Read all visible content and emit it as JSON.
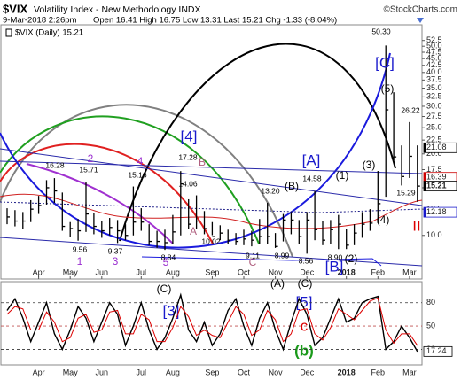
{
  "chart_data": {
    "type": "ohlc",
    "title": "$VIX",
    "subtitle": "Volatility Index - New Methodology INDX",
    "copyright": "©StockCharts.com",
    "date": "9-Mar-2018 2:26pm",
    "quote": "Open 16.41 High 16.75 Low 13.31 Last 15.21 Chg -1.33 (-8.04%)",
    "legend": "$VIX (Daily) 15.21",
    "color": "#000000",
    "log_scale": true,
    "categories": [
      null,
      null,
      null,
      null,
      "Apr",
      null,
      null,
      null,
      "May",
      null,
      null,
      null,
      "Jun",
      null,
      null,
      null,
      null,
      "Jul",
      null,
      null,
      null,
      "Aug",
      null,
      null,
      null,
      null,
      "Sep",
      null,
      null,
      null,
      "Oct",
      null,
      null,
      null,
      "Nov",
      null,
      null,
      null,
      "Dec",
      null,
      null,
      null,
      null,
      "2018",
      null,
      null,
      null,
      "Feb",
      null,
      null,
      null,
      "Mar",
      null
    ],
    "high": [
      12.6,
      12.4,
      12.2,
      13.5,
      14.0,
      16.0,
      16.28,
      14.4,
      11.2,
      11.5,
      15.71,
      12.1,
      11.3,
      11.6,
      11.4,
      11.0,
      15.16,
      12.6,
      11.0,
      10.4,
      10.5,
      11.9,
      17.28,
      13.6,
      14.06,
      12.3,
      11.2,
      10.9,
      10.5,
      10.2,
      10.5,
      10.4,
      11.5,
      13.2,
      10.2,
      12.0,
      12.2,
      11.4,
      12.2,
      14.58,
      11.3,
      11.4,
      11.9,
      10.6,
      11.0,
      12.2,
      12.5,
      17.3,
      50.3,
      33.8,
      21.5,
      26.22,
      21.5
    ],
    "low": [
      11.0,
      10.8,
      10.6,
      11.2,
      12.0,
      13.0,
      13.2,
      10.4,
      9.9,
      9.56,
      10.3,
      10.1,
      9.8,
      10.0,
      9.37,
      9.6,
      10.0,
      10.4,
      9.2,
      9.0,
      8.84,
      9.3,
      10.0,
      10.6,
      10.6,
      10.1,
      10.02,
      9.6,
      9.3,
      9.2,
      9.2,
      9.11,
      9.3,
      9.3,
      8.99,
      9.5,
      10.1,
      9.3,
      8.56,
      9.6,
      9.2,
      9.3,
      8.9,
      8.9,
      9.2,
      9.8,
      10.4,
      11.1,
      13.9,
      18.9,
      15.29,
      16.3,
      13.31
    ],
    "close": [
      11.7,
      11.3,
      11.3,
      12.5,
      12.9,
      15.0,
      14.6,
      10.8,
      10.6,
      10.4,
      12.0,
      10.8,
      10.4,
      10.7,
      10.4,
      10.0,
      11.2,
      11.2,
      9.5,
      9.5,
      9.4,
      10.3,
      15.5,
      11.0,
      11.3,
      10.6,
      9.9,
      10.2,
      9.6,
      9.5,
      9.7,
      9.6,
      9.9,
      9.9,
      9.1,
      11.4,
      11.4,
      9.9,
      11.4,
      10.5,
      9.6,
      10.5,
      11.0,
      9.2,
      10.2,
      11.0,
      11.1,
      13.1,
      29.1,
      19.5,
      16.5,
      19.6,
      15.21
    ],
    "ylim": [
      6.9,
      60
    ],
    "yticks": [
      {
        "value": 10,
        "label": "10.0"
      },
      12.5,
      {
        "value": 15,
        "label": "15.0"
      },
      17.5,
      {
        "value": 20,
        "label": "20.0"
      },
      22.5,
      {
        "value": 25,
        "label": "25.0"
      },
      27.5,
      {
        "value": 30,
        "label": "30.0"
      },
      32.5,
      {
        "value": 35,
        "label": "35.0"
      },
      37.5,
      {
        "value": 40,
        "label": "40.0"
      },
      42.5,
      {
        "value": 45,
        "label": "45.0"
      },
      47.5,
      {
        "value": 50,
        "label": "50.0"
      },
      52.5
    ],
    "right_labels": [
      21.08,
      16.39,
      15.21,
      12.18
    ],
    "right_label_colors": [
      "#000000",
      "#cc0000",
      "#000000",
      "#1a1acc"
    ],
    "annotations": [
      {
        "text": "1",
        "color": "#9b30d0"
      },
      {
        "text": "2",
        "color": "#9b30d0"
      },
      {
        "text": "3",
        "color": "#9b30d0"
      },
      {
        "text": "4",
        "color": "#9b30d0"
      },
      {
        "text": "5",
        "color": "#9b30d0"
      },
      {
        "text": "[4]",
        "color": "#1a1acc"
      },
      {
        "text": "B",
        "color": "#b06080"
      },
      {
        "text": "A",
        "color": "#b06080"
      },
      {
        "text": "C",
        "color": "#b06080"
      },
      {
        "text": "[A]",
        "color": "#1a1acc"
      },
      {
        "text": "(B)",
        "color": "#000000"
      },
      {
        "text": "(1)",
        "color": "#000000"
      },
      {
        "text": "(3)",
        "color": "#000000"
      },
      {
        "text": "(4)",
        "color": "#000000"
      },
      {
        "text": "(5)",
        "color": "#000000"
      },
      {
        "text": "[C]",
        "color": "#1a1acc"
      },
      {
        "text": "(2)",
        "color": "#000000"
      },
      {
        "text": "[B]",
        "color": "#1a1acc"
      },
      {
        "text": "(A)",
        "color": "#000000"
      },
      {
        "text": "(C)",
        "color": "#000000"
      },
      {
        "text": "II",
        "color": "#dd0000"
      },
      {
        "text": "16.28",
        "color": "#000000"
      },
      {
        "text": "15.71",
        "color": "#000000"
      },
      {
        "text": "15.16",
        "color": "#000000"
      },
      {
        "text": "17.28",
        "color": "#000000"
      },
      {
        "text": "14.06",
        "color": "#000000"
      },
      {
        "text": "13.20",
        "color": "#000000"
      },
      {
        "text": "14.58",
        "color": "#000000"
      },
      {
        "text": "10.02",
        "color": "#000000"
      },
      {
        "text": "9.56",
        "color": "#000000"
      },
      {
        "text": "9.37",
        "color": "#000000"
      },
      {
        "text": "8.84",
        "color": "#000000"
      },
      {
        "text": "9.11",
        "color": "#000000"
      },
      {
        "text": "8.99",
        "color": "#000000"
      },
      {
        "text": "8.56",
        "color": "#000000"
      },
      {
        "text": "8.90",
        "color": "#000000"
      },
      {
        "text": "50.30",
        "color": "#000000"
      },
      {
        "text": "26.22",
        "color": "#000000"
      },
      {
        "text": "15.29",
        "color": "#000000"
      },
      {
        "text": "(C)",
        "color": "#000000"
      },
      {
        "text": "[3]",
        "color": "#1a1acc"
      },
      {
        "text": "[5]",
        "color": "#1a1acc"
      },
      {
        "text": "c",
        "color": "#dd0000"
      },
      {
        "text": "(b)",
        "color": "#1a9a1a"
      }
    ],
    "oscillator": {
      "type": "line",
      "series": [
        {
          "color": "#000000",
          "values": [
            70,
            85,
            60,
            30,
            55,
            80,
            40,
            20,
            45,
            75,
            60,
            30,
            55,
            80,
            65,
            25,
            50,
            80,
            45,
            20,
            35,
            60,
            90,
            45,
            30,
            55,
            25,
            40,
            70,
            85,
            50,
            25,
            60,
            80,
            45,
            20,
            55,
            85,
            65,
            25,
            35,
            60,
            85,
            55,
            60,
            80,
            85,
            88,
            20,
            30,
            50,
            35,
            17.24
          ]
        },
        {
          "color": "#dd0000",
          "values": [
            65,
            75,
            72,
            45,
            45,
            68,
            55,
            30,
            35,
            60,
            65,
            42,
            45,
            68,
            70,
            40,
            40,
            65,
            58,
            30,
            30,
            48,
            75,
            62,
            38,
            45,
            38,
            35,
            55,
            75,
            65,
            38,
            45,
            70,
            58,
            30,
            40,
            70,
            72,
            40,
            32,
            48,
            72,
            65,
            58,
            70,
            82,
            86,
            45,
            28,
            40,
            40,
            25
          ]
        }
      ],
      "last_label": 17.24,
      "ylim": [
        0,
        107
      ],
      "yticks": [
        20,
        50,
        80
      ]
    }
  }
}
